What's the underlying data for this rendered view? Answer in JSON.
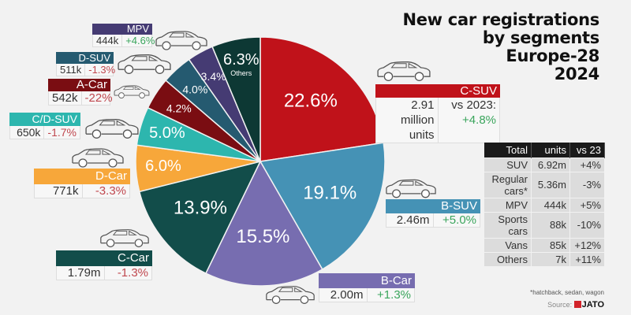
{
  "title": [
    "New car registrations",
    "by segments",
    "Europe-28",
    "2024"
  ],
  "chart_data": {
    "type": "pie",
    "title": "New car registrations by segments Europe-28 2024",
    "slices": [
      {
        "name": "C-SUV",
        "value": 22.6,
        "label": "22.6%",
        "color": "#c0121a",
        "units": "2.91 million units",
        "change": "vs 2023: +4.8%"
      },
      {
        "name": "B-SUV",
        "value": 19.1,
        "label": "19.1%",
        "color": "#4592b5",
        "units": "2.46m",
        "change": "+5.0%"
      },
      {
        "name": "B-Car",
        "value": 15.5,
        "label": "15.5%",
        "color": "#776db0",
        "units": "2.00m",
        "change": "+1.3%"
      },
      {
        "name": "C-Car",
        "value": 13.9,
        "label": "13.9%",
        "color": "#124d4a",
        "units": "1.79m",
        "change": "-1.3%"
      },
      {
        "name": "D-Car",
        "value": 6.0,
        "label": "6.0%",
        "color": "#f7a73a",
        "units": "771k",
        "change": "-3.3%"
      },
      {
        "name": "C/D-SUV",
        "value": 5.0,
        "label": "5.0%",
        "color": "#2db6ae",
        "units": "650k",
        "change": "-1.7%"
      },
      {
        "name": "A-Car",
        "value": 4.2,
        "label": "4.2%",
        "color": "#7a0d12",
        "units": "542k",
        "change": "-22%"
      },
      {
        "name": "D-SUV",
        "value": 4.0,
        "label": "4.0%",
        "color": "#255a70",
        "units": "511k",
        "change": "-1.3%"
      },
      {
        "name": "MPV",
        "value": 3.4,
        "label": "3.4%",
        "color": "#453b73",
        "units": "444k",
        "change": "+4.6%"
      },
      {
        "name": "Others",
        "value": 6.3,
        "label": "6.3%",
        "color": "#0d3834",
        "sub": "Others"
      }
    ]
  },
  "csuv": {
    "units1": "2.91 million",
    "units2": "units",
    "vs1": "vs 2023:",
    "vs2": "+4.8%"
  },
  "table": {
    "headers": [
      "Total",
      "units",
      "vs 23"
    ],
    "rows": [
      [
        "SUV",
        "6.92m",
        "+4%"
      ],
      [
        "Regular cars*",
        "5.36m",
        "-3%"
      ],
      [
        "MPV",
        "444k",
        "+5%"
      ],
      [
        "Sports cars",
        "88k",
        "-10%"
      ],
      [
        "Vans",
        "85k",
        "+12%"
      ],
      [
        "Others",
        "7k",
        "+11%"
      ]
    ]
  },
  "footnote": "*hatchback, sedan, wagon",
  "source_label": "Source:",
  "source_brand": "JATO"
}
